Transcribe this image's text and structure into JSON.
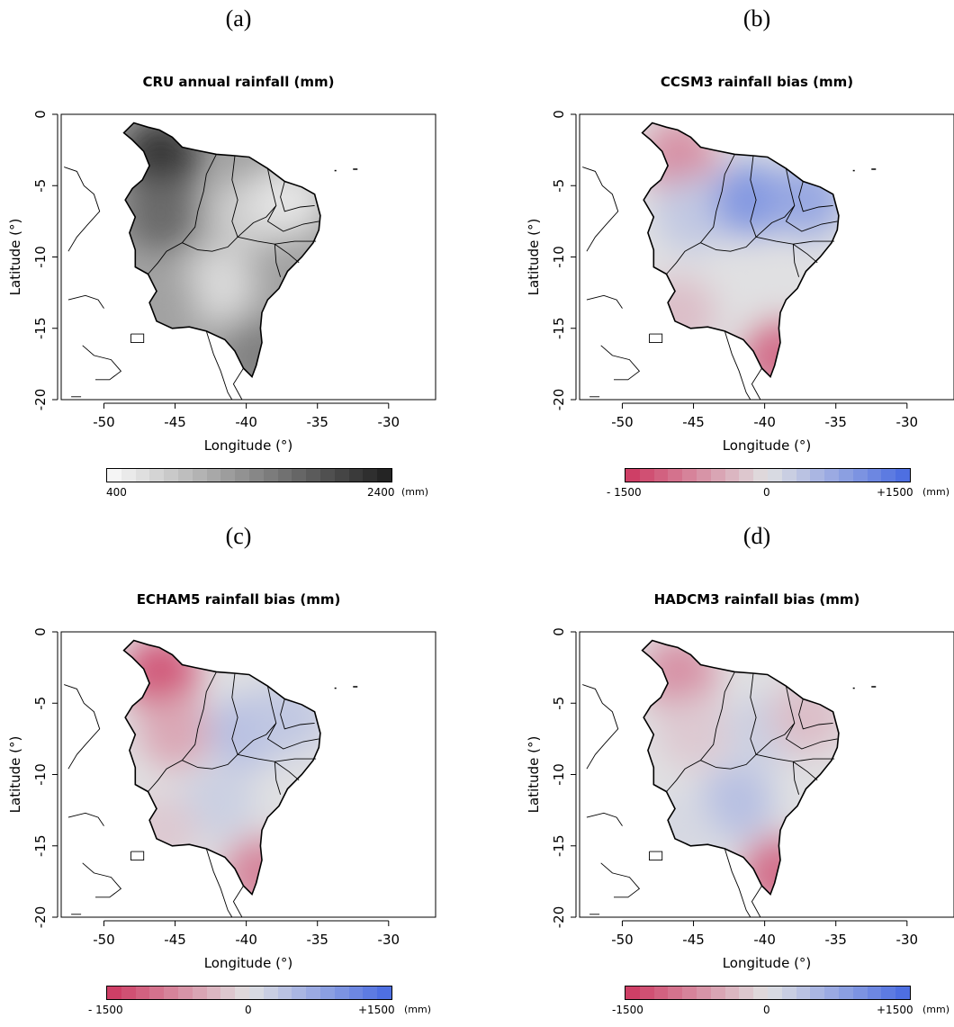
{
  "panels": [
    {
      "letter": "(a)",
      "title": "CRU annual rainfall (mm)",
      "colorbar": {
        "min_label": "400",
        "max_label": "2400",
        "mid_label": "",
        "unit": "(mm)",
        "type": "gray"
      }
    },
    {
      "letter": "(b)",
      "title": "CCSM3 rainfall bias (mm)",
      "colorbar": {
        "min_label": "- 1500",
        "max_label": "+1500",
        "mid_label": "0",
        "unit": "(mm)",
        "type": "div"
      }
    },
    {
      "letter": "(c)",
      "title": "ECHAM5 rainfall bias (mm)",
      "colorbar": {
        "min_label": "- 1500",
        "max_label": "+1500",
        "mid_label": "0",
        "unit": "(mm)",
        "type": "div"
      }
    },
    {
      "letter": "(d)",
      "title": "HADCM3 rainfall bias (mm)",
      "colorbar": {
        "min_label": "-1500",
        "max_label": "+1500",
        "mid_label": "0",
        "unit": "(mm)",
        "type": "div"
      }
    }
  ],
  "axes": {
    "xlabel": "Longitude (°)",
    "ylabel": "Latitude (°)",
    "xticks": [
      -50,
      -45,
      -40,
      -35,
      -30
    ],
    "yticks": [
      0,
      -5,
      -10,
      -15,
      -20
    ],
    "xlim": [
      -53,
      -26.7
    ],
    "ylim": [
      -20,
      0
    ]
  },
  "chart_data": [
    {
      "type": "heatmap",
      "title": "CRU annual rainfall (mm)",
      "xlabel": "Longitude (°)",
      "ylabel": "Latitude (°)",
      "xlim": [
        -53,
        -26.7
      ],
      "ylim": [
        -20,
        0
      ],
      "colorbar_range": [
        400,
        2400
      ],
      "colormap": "white-to-black",
      "regions": [
        {
          "lon": -46,
          "lat": -3,
          "value": 2200
        },
        {
          "lon": -46,
          "lat": -7,
          "value": 1700
        },
        {
          "lon": -40,
          "lat": -7,
          "value": 800
        },
        {
          "lon": -37,
          "lat": -6,
          "value": 600
        },
        {
          "lon": -42,
          "lat": -12,
          "value": 700
        },
        {
          "lon": -46,
          "lat": -13,
          "value": 1200
        },
        {
          "lon": -39,
          "lat": -17,
          "value": 1500
        }
      ]
    },
    {
      "type": "heatmap",
      "title": "CCSM3 rainfall bias (mm)",
      "xlabel": "Longitude (°)",
      "ylabel": "Latitude (°)",
      "xlim": [
        -53,
        -26.7
      ],
      "ylim": [
        -20,
        0
      ],
      "colorbar_range": [
        -1500,
        1500
      ],
      "colormap": "red-gray-blue",
      "regions": [
        {
          "lon": -46,
          "lat": -3,
          "value": -700
        },
        {
          "lon": -45,
          "lat": -7,
          "value": 300
        },
        {
          "lon": -41,
          "lat": -6,
          "value": 900
        },
        {
          "lon": -37,
          "lat": -6,
          "value": 700
        },
        {
          "lon": -42,
          "lat": -12,
          "value": 0
        },
        {
          "lon": -46,
          "lat": -14,
          "value": -300
        },
        {
          "lon": -39,
          "lat": -17,
          "value": -1000
        }
      ]
    },
    {
      "type": "heatmap",
      "title": "ECHAM5 rainfall bias (mm)",
      "xlabel": "Longitude (°)",
      "ylabel": "Latitude (°)",
      "xlim": [
        -53,
        -26.7
      ],
      "ylim": [
        -20,
        0
      ],
      "colorbar_range": [
        -1500,
        1500
      ],
      "colormap": "red-gray-blue",
      "regions": [
        {
          "lon": -46,
          "lat": -3,
          "value": -1200
        },
        {
          "lon": -45,
          "lat": -7,
          "value": -500
        },
        {
          "lon": -40,
          "lat": -7,
          "value": 400
        },
        {
          "lon": -37,
          "lat": -6,
          "value": 300
        },
        {
          "lon": -42,
          "lat": -12,
          "value": 200
        },
        {
          "lon": -46,
          "lat": -14,
          "value": -200
        },
        {
          "lon": -39,
          "lat": -17,
          "value": -800
        }
      ]
    },
    {
      "type": "heatmap",
      "title": "HADCM3 rainfall bias (mm)",
      "xlabel": "Longitude (°)",
      "ylabel": "Latitude (°)",
      "xlim": [
        -53,
        -26.7
      ],
      "ylim": [
        -20,
        0
      ],
      "colorbar_range": [
        -1500,
        1500
      ],
      "colormap": "red-gray-blue",
      "regions": [
        {
          "lon": -46,
          "lat": -3,
          "value": -700
        },
        {
          "lon": -45,
          "lat": -7,
          "value": -200
        },
        {
          "lon": -40,
          "lat": -7,
          "value": 200
        },
        {
          "lon": -37,
          "lat": -6,
          "value": -300
        },
        {
          "lon": -42,
          "lat": -12,
          "value": 400
        },
        {
          "lon": -46,
          "lat": -14,
          "value": 100
        },
        {
          "lon": -39,
          "lat": -17,
          "value": -1000
        }
      ]
    }
  ]
}
